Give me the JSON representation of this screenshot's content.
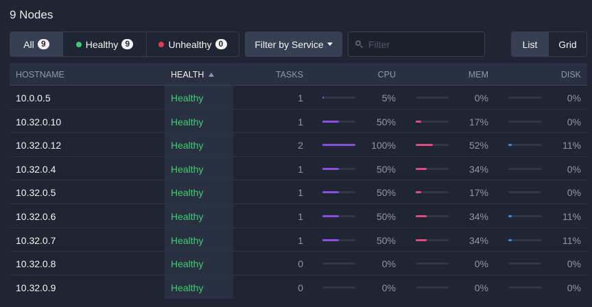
{
  "title": "9 Nodes",
  "status_filter": {
    "all_label": "All",
    "all_count": "9",
    "healthy_label": "Healthy",
    "healthy_count": "9",
    "unhealthy_label": "Unhealthy",
    "unhealthy_count": "0"
  },
  "filter_service_label": "Filter by Service",
  "search": {
    "placeholder": "Filter",
    "value": ""
  },
  "view_toggle": {
    "list": "List",
    "grid": "Grid",
    "selected": "List"
  },
  "colors": {
    "healthy": "#3ecf6e",
    "unhealthy": "#e8394f",
    "cpu": "#8b4fe0",
    "mem": "#e04a85",
    "disk": "#3b8bea"
  },
  "table": {
    "headers": {
      "hostname": "HOSTNAME",
      "health": "HEALTH",
      "tasks": "TASKS",
      "cpu": "CPU",
      "mem": "MEM",
      "disk": "DISK"
    },
    "sort": {
      "column": "HEALTH",
      "direction": "ascending"
    },
    "rows": [
      {
        "hostname": "10.0.0.5",
        "health": "Healthy",
        "tasks": "1",
        "cpu": "5%",
        "cpu_pct": 5,
        "mem": "0%",
        "mem_pct": 0,
        "disk": "0%",
        "disk_pct": 0
      },
      {
        "hostname": "10.32.0.10",
        "health": "Healthy",
        "tasks": "1",
        "cpu": "50%",
        "cpu_pct": 50,
        "mem": "17%",
        "mem_pct": 17,
        "disk": "0%",
        "disk_pct": 0
      },
      {
        "hostname": "10.32.0.12",
        "health": "Healthy",
        "tasks": "2",
        "cpu": "100%",
        "cpu_pct": 100,
        "mem": "52%",
        "mem_pct": 52,
        "disk": "11%",
        "disk_pct": 11
      },
      {
        "hostname": "10.32.0.4",
        "health": "Healthy",
        "tasks": "1",
        "cpu": "50%",
        "cpu_pct": 50,
        "mem": "34%",
        "mem_pct": 34,
        "disk": "0%",
        "disk_pct": 0
      },
      {
        "hostname": "10.32.0.5",
        "health": "Healthy",
        "tasks": "1",
        "cpu": "50%",
        "cpu_pct": 50,
        "mem": "17%",
        "mem_pct": 17,
        "disk": "0%",
        "disk_pct": 0
      },
      {
        "hostname": "10.32.0.6",
        "health": "Healthy",
        "tasks": "1",
        "cpu": "50%",
        "cpu_pct": 50,
        "mem": "34%",
        "mem_pct": 34,
        "disk": "11%",
        "disk_pct": 11
      },
      {
        "hostname": "10.32.0.7",
        "health": "Healthy",
        "tasks": "1",
        "cpu": "50%",
        "cpu_pct": 50,
        "mem": "34%",
        "mem_pct": 34,
        "disk": "11%",
        "disk_pct": 11
      },
      {
        "hostname": "10.32.0.8",
        "health": "Healthy",
        "tasks": "0",
        "cpu": "0%",
        "cpu_pct": 0,
        "mem": "0%",
        "mem_pct": 0,
        "disk": "0%",
        "disk_pct": 0
      },
      {
        "hostname": "10.32.0.9",
        "health": "Healthy",
        "tasks": "0",
        "cpu": "0%",
        "cpu_pct": 0,
        "mem": "0%",
        "mem_pct": 0,
        "disk": "0%",
        "disk_pct": 0
      }
    ]
  }
}
